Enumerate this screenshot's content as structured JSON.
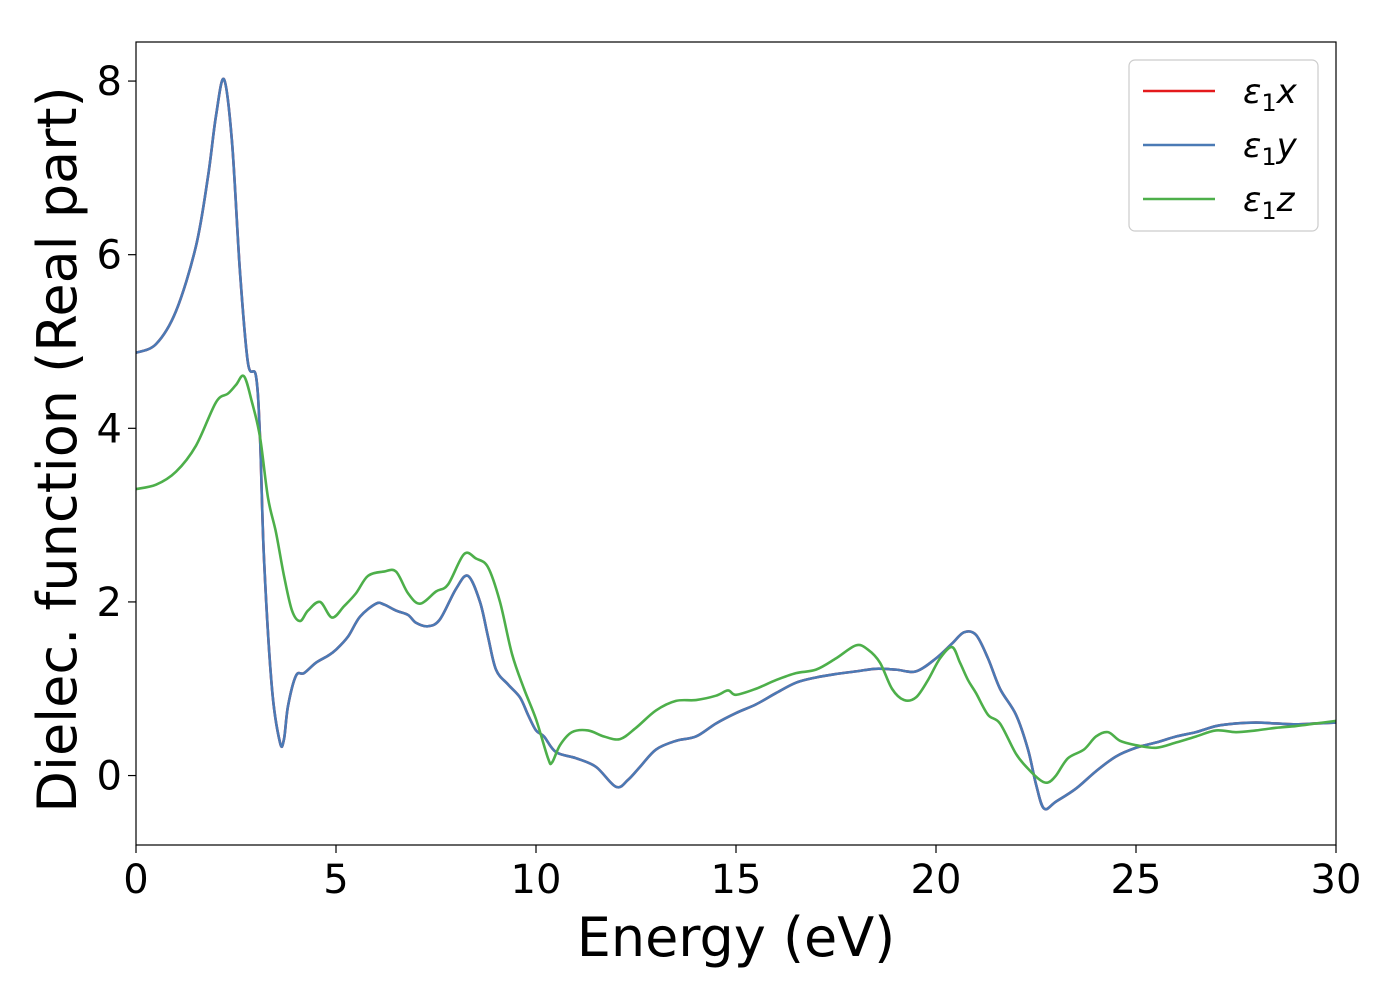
{
  "chart_data": {
    "type": "line",
    "xlabel": "Energy (eV)",
    "ylabel": "Dielec. function (Real part)",
    "xlim": [
      0,
      30
    ],
    "ylim": [
      -0.8,
      8.45
    ],
    "xticks": [
      0,
      5,
      10,
      15,
      20,
      25,
      30
    ],
    "yticks": [
      0,
      2,
      4,
      6,
      8
    ],
    "grid": false,
    "legend_position": "top-right",
    "series": [
      {
        "name": "ε1x",
        "legend_main": "ε",
        "legend_sub": "1",
        "legend_tail": "x",
        "color": "#e41a1c",
        "x": [
          0,
          0.5,
          1.0,
          1.5,
          1.8,
          2.0,
          2.2,
          2.4,
          2.6,
          2.8,
          3.0,
          3.1,
          3.2,
          3.4,
          3.6,
          3.7,
          3.8,
          4.0,
          4.2,
          4.5,
          4.8,
          5.0,
          5.3,
          5.6,
          6.0,
          6.2,
          6.5,
          6.8,
          7.0,
          7.3,
          7.6,
          8.0,
          8.3,
          8.6,
          8.8,
          9.0,
          9.3,
          9.6,
          9.8,
          10.0,
          10.2,
          10.5,
          11.0,
          11.5,
          12.0,
          12.3,
          12.6,
          13.0,
          13.5,
          14.0,
          14.5,
          15.0,
          15.5,
          16.0,
          16.5,
          17.0,
          17.5,
          18.0,
          18.5,
          19.0,
          19.5,
          20.0,
          20.4,
          20.7,
          21.0,
          21.3,
          21.6,
          22.0,
          22.3,
          22.5,
          22.7,
          23.0,
          23.5,
          24.0,
          24.5,
          25.0,
          25.5,
          26.0,
          26.5,
          27.0,
          27.5,
          28.0,
          28.5,
          29.0,
          29.5,
          30.0
        ],
        "y": [
          4.87,
          4.97,
          5.35,
          6.1,
          6.9,
          7.6,
          8.02,
          7.3,
          5.8,
          4.75,
          4.6,
          3.9,
          2.5,
          1.0,
          0.38,
          0.42,
          0.8,
          1.15,
          1.18,
          1.3,
          1.38,
          1.45,
          1.6,
          1.83,
          1.98,
          1.97,
          1.9,
          1.85,
          1.76,
          1.72,
          1.8,
          2.15,
          2.3,
          2.0,
          1.6,
          1.22,
          1.05,
          0.9,
          0.7,
          0.52,
          0.45,
          0.27,
          0.2,
          0.1,
          -0.13,
          -0.05,
          0.1,
          0.3,
          0.4,
          0.45,
          0.6,
          0.72,
          0.82,
          0.95,
          1.07,
          1.13,
          1.17,
          1.2,
          1.23,
          1.22,
          1.2,
          1.35,
          1.52,
          1.65,
          1.62,
          1.35,
          1.0,
          0.7,
          0.3,
          -0.1,
          -0.38,
          -0.3,
          -0.15,
          0.05,
          0.22,
          0.32,
          0.38,
          0.45,
          0.5,
          0.57,
          0.6,
          0.61,
          0.6,
          0.59,
          0.6,
          0.61
        ]
      },
      {
        "name": "ε1y",
        "legend_main": "ε",
        "legend_sub": "1",
        "legend_tail": "y",
        "color": "#4a7ab5",
        "x": [
          0,
          0.5,
          1.0,
          1.5,
          1.8,
          2.0,
          2.2,
          2.4,
          2.6,
          2.8,
          3.0,
          3.1,
          3.2,
          3.4,
          3.6,
          3.7,
          3.8,
          4.0,
          4.2,
          4.5,
          4.8,
          5.0,
          5.3,
          5.6,
          6.0,
          6.2,
          6.5,
          6.8,
          7.0,
          7.3,
          7.6,
          8.0,
          8.3,
          8.6,
          8.8,
          9.0,
          9.3,
          9.6,
          9.8,
          10.0,
          10.2,
          10.5,
          11.0,
          11.5,
          12.0,
          12.3,
          12.6,
          13.0,
          13.5,
          14.0,
          14.5,
          15.0,
          15.5,
          16.0,
          16.5,
          17.0,
          17.5,
          18.0,
          18.5,
          19.0,
          19.5,
          20.0,
          20.4,
          20.7,
          21.0,
          21.3,
          21.6,
          22.0,
          22.3,
          22.5,
          22.7,
          23.0,
          23.5,
          24.0,
          24.5,
          25.0,
          25.5,
          26.0,
          26.5,
          27.0,
          27.5,
          28.0,
          28.5,
          29.0,
          29.5,
          30.0
        ],
        "y": [
          4.87,
          4.97,
          5.35,
          6.1,
          6.9,
          7.6,
          8.02,
          7.3,
          5.8,
          4.75,
          4.6,
          3.9,
          2.5,
          1.0,
          0.38,
          0.42,
          0.8,
          1.15,
          1.18,
          1.3,
          1.38,
          1.45,
          1.6,
          1.83,
          1.98,
          1.97,
          1.9,
          1.85,
          1.76,
          1.72,
          1.8,
          2.15,
          2.3,
          2.0,
          1.6,
          1.22,
          1.05,
          0.9,
          0.7,
          0.52,
          0.45,
          0.27,
          0.2,
          0.1,
          -0.13,
          -0.05,
          0.1,
          0.3,
          0.4,
          0.45,
          0.6,
          0.72,
          0.82,
          0.95,
          1.07,
          1.13,
          1.17,
          1.2,
          1.23,
          1.22,
          1.2,
          1.35,
          1.52,
          1.65,
          1.62,
          1.35,
          1.0,
          0.7,
          0.3,
          -0.1,
          -0.38,
          -0.3,
          -0.15,
          0.05,
          0.22,
          0.32,
          0.38,
          0.45,
          0.5,
          0.57,
          0.6,
          0.61,
          0.6,
          0.59,
          0.6,
          0.61
        ]
      },
      {
        "name": "ε1z",
        "legend_main": "ε",
        "legend_sub": "1",
        "legend_tail": "z",
        "color": "#4daf4a",
        "x": [
          0,
          0.5,
          1.0,
          1.5,
          2.0,
          2.3,
          2.5,
          2.7,
          2.9,
          3.1,
          3.3,
          3.5,
          3.7,
          3.9,
          4.1,
          4.3,
          4.6,
          4.9,
          5.2,
          5.5,
          5.8,
          6.2,
          6.5,
          6.8,
          7.1,
          7.5,
          7.8,
          8.2,
          8.5,
          8.8,
          9.1,
          9.4,
          9.7,
          10.0,
          10.3,
          10.4,
          10.6,
          10.9,
          11.3,
          11.7,
          12.1,
          12.5,
          13.0,
          13.5,
          14.0,
          14.5,
          14.8,
          15.0,
          15.5,
          16.0,
          16.5,
          17.0,
          17.5,
          18.0,
          18.3,
          18.6,
          18.9,
          19.2,
          19.5,
          19.8,
          20.1,
          20.4,
          20.6,
          20.8,
          21.0,
          21.3,
          21.6,
          22.0,
          22.3,
          22.6,
          22.8,
          23.0,
          23.3,
          23.7,
          24.0,
          24.3,
          24.6,
          25.0,
          25.5,
          26.0,
          26.5,
          27.0,
          27.5,
          28.0,
          28.5,
          29.0,
          29.5,
          30.0
        ],
        "y": [
          3.3,
          3.35,
          3.5,
          3.8,
          4.3,
          4.4,
          4.5,
          4.6,
          4.3,
          3.9,
          3.2,
          2.8,
          2.3,
          1.9,
          1.78,
          1.9,
          2.0,
          1.82,
          1.95,
          2.1,
          2.3,
          2.35,
          2.35,
          2.1,
          1.98,
          2.12,
          2.2,
          2.55,
          2.5,
          2.4,
          2.0,
          1.4,
          1.0,
          0.65,
          0.2,
          0.15,
          0.35,
          0.5,
          0.52,
          0.45,
          0.42,
          0.55,
          0.75,
          0.86,
          0.87,
          0.92,
          0.98,
          0.93,
          1.0,
          1.1,
          1.18,
          1.22,
          1.35,
          1.5,
          1.45,
          1.3,
          1.0,
          0.87,
          0.9,
          1.1,
          1.35,
          1.48,
          1.3,
          1.1,
          0.95,
          0.7,
          0.6,
          0.25,
          0.08,
          -0.05,
          -0.08,
          0.0,
          0.2,
          0.3,
          0.45,
          0.5,
          0.4,
          0.35,
          0.32,
          0.38,
          0.45,
          0.52,
          0.5,
          0.52,
          0.55,
          0.57,
          0.6,
          0.63
        ]
      }
    ]
  }
}
